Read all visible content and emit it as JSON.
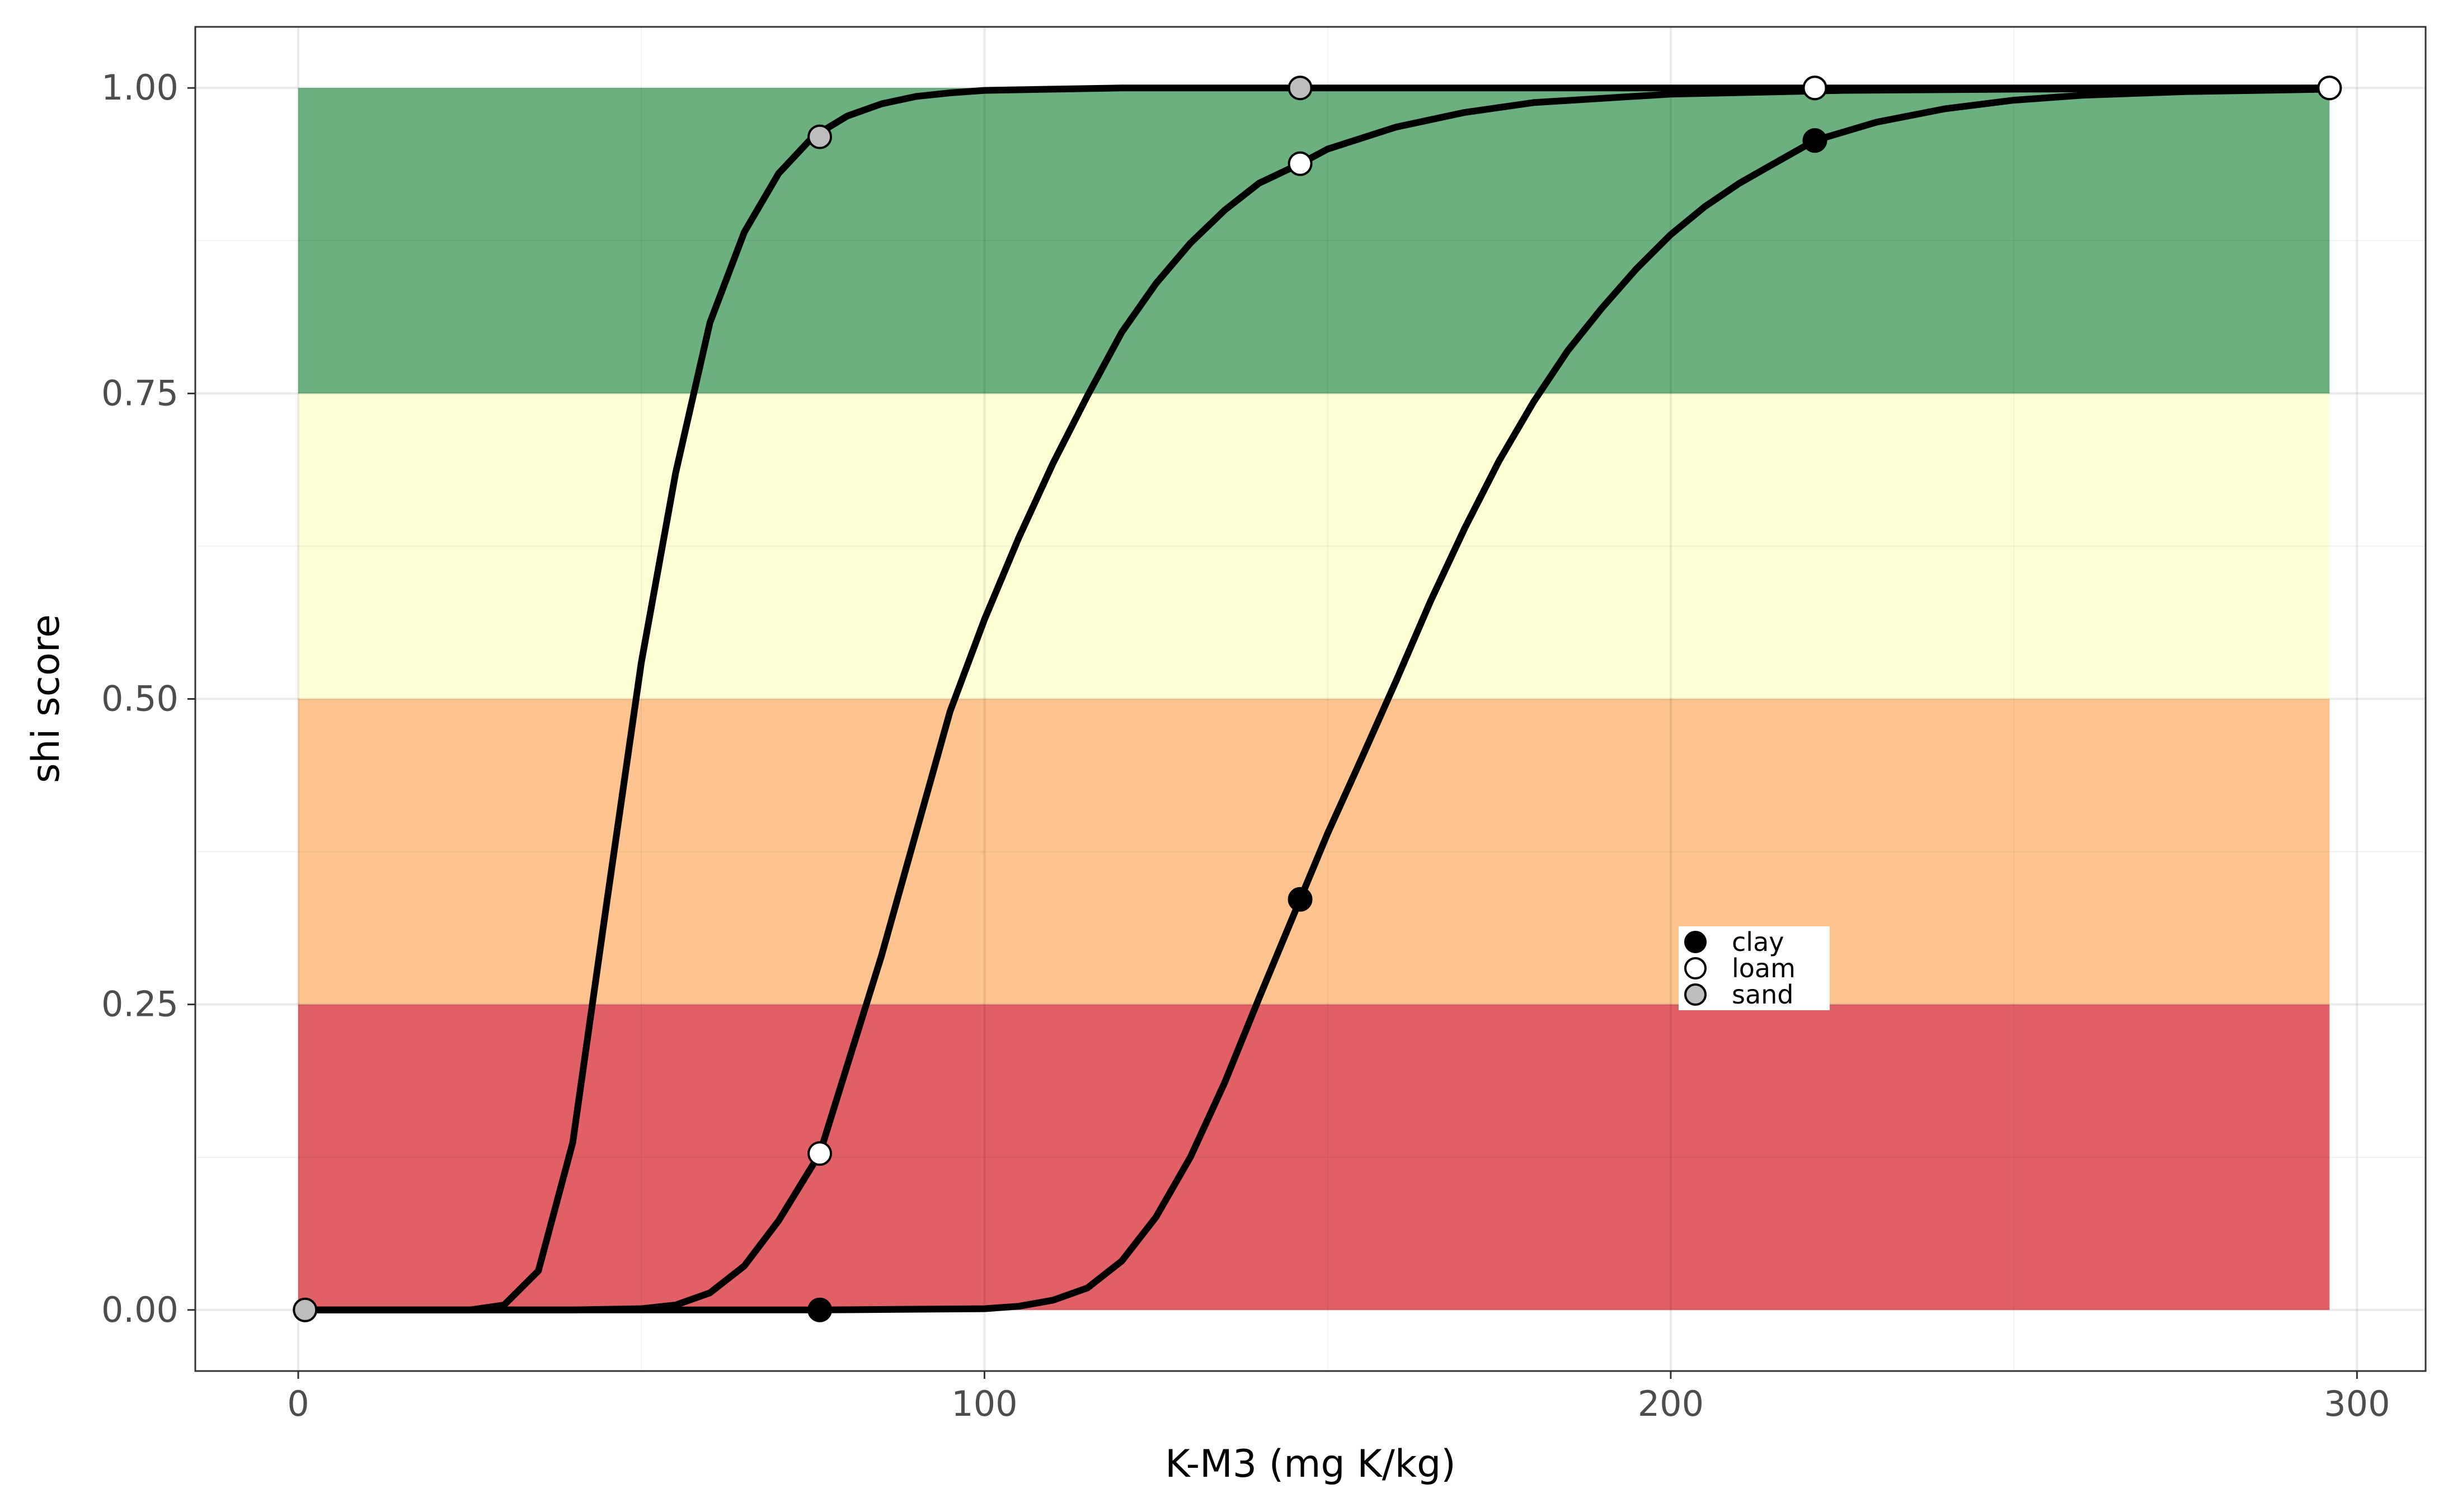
{
  "chart_data": {
    "type": "line",
    "title": "",
    "xlabel": "K-M3 (mg K/kg)",
    "ylabel": "shi score",
    "xlim": [
      -15,
      310
    ],
    "ylim": [
      -0.05,
      1.05
    ],
    "xticks": [
      0,
      100,
      200,
      300
    ],
    "yticks": [
      0.0,
      0.25,
      0.5,
      0.75,
      1.0
    ],
    "xtick_labels": [
      "0",
      "100",
      "200",
      "300"
    ],
    "ytick_labels": [
      "0.00",
      "0.25",
      "0.50",
      "0.75",
      "1.00"
    ],
    "grid": true,
    "background_bands": [
      {
        "from": 0.0,
        "to": 0.25,
        "x_from": 0,
        "x_to": 296,
        "color": "#e06066"
      },
      {
        "from": 0.25,
        "to": 0.5,
        "x_from": 0,
        "x_to": 296,
        "color": "#fdc48f"
      },
      {
        "from": 0.5,
        "to": 0.75,
        "x_from": 0,
        "x_to": 296,
        "color": "#ffffd6"
      },
      {
        "from": 0.75,
        "to": 1.0,
        "x_from": 0,
        "x_to": 296,
        "color": "#6cb07f"
      }
    ],
    "series": [
      {
        "name": "sand",
        "marker_fill": "#bdbdbd",
        "x": [
          1,
          25,
          30,
          35,
          40,
          45,
          50,
          55,
          60,
          65,
          70,
          75,
          80,
          85,
          90,
          95,
          100,
          110,
          120,
          130,
          150,
          200,
          250,
          296
        ],
        "y": [
          0.0,
          0.0,
          0.004,
          0.032,
          0.137,
          0.335,
          0.53,
          0.685,
          0.808,
          0.882,
          0.93,
          0.96,
          0.977,
          0.987,
          0.993,
          0.996,
          0.998,
          0.999,
          1.0,
          1.0,
          1.0,
          1.0,
          1.0,
          1.0
        ],
        "points_x": [
          1,
          76,
          146,
          221,
          296
        ],
        "points_y": [
          0.0,
          0.96,
          1.0,
          1.0,
          1.0
        ]
      },
      {
        "name": "loam",
        "marker_fill": "#ffffff",
        "x": [
          1,
          40,
          50,
          55,
          60,
          65,
          70,
          76,
          80,
          85,
          90,
          95,
          100,
          105,
          110,
          115,
          120,
          125,
          130,
          135,
          140,
          146,
          150,
          160,
          170,
          180,
          200,
          225,
          250,
          296
        ],
        "y": [
          0.0,
          0.0,
          0.001,
          0.004,
          0.014,
          0.036,
          0.073,
          0.128,
          0.2,
          0.29,
          0.39,
          0.49,
          0.565,
          0.632,
          0.693,
          0.748,
          0.8,
          0.84,
          0.873,
          0.9,
          0.922,
          0.938,
          0.95,
          0.968,
          0.98,
          0.988,
          0.995,
          0.998,
          0.999,
          1.0
        ],
        "points_x": [
          76,
          146,
          221,
          296
        ],
        "points_y": [
          0.128,
          0.938,
          1.0,
          1.0
        ]
      },
      {
        "name": "clay",
        "marker_fill": "#000000",
        "x": [
          1,
          76,
          100,
          105,
          110,
          115,
          120,
          125,
          130,
          135,
          140,
          146,
          150,
          155,
          160,
          165,
          170,
          175,
          180,
          185,
          190,
          195,
          200,
          205,
          210,
          215,
          221,
          230,
          240,
          250,
          260,
          275,
          296
        ],
        "y": [
          0.0,
          0.0,
          0.001,
          0.003,
          0.008,
          0.018,
          0.04,
          0.076,
          0.125,
          0.186,
          0.255,
          0.336,
          0.39,
          0.452,
          0.515,
          0.58,
          0.64,
          0.695,
          0.743,
          0.785,
          0.82,
          0.852,
          0.88,
          0.903,
          0.922,
          0.938,
          0.957,
          0.972,
          0.983,
          0.99,
          0.994,
          0.997,
          0.999
        ],
        "points_x": [
          76,
          146,
          221
        ],
        "points_y": [
          0.0,
          0.336,
          0.957
        ]
      }
    ],
    "legend": {
      "placement": "inside-right",
      "entries": [
        {
          "label": "clay",
          "marker_fill": "#000000"
        },
        {
          "label": "loam",
          "marker_fill": "#ffffff"
        },
        {
          "label": "sand",
          "marker_fill": "#bdbdbd"
        }
      ]
    }
  }
}
